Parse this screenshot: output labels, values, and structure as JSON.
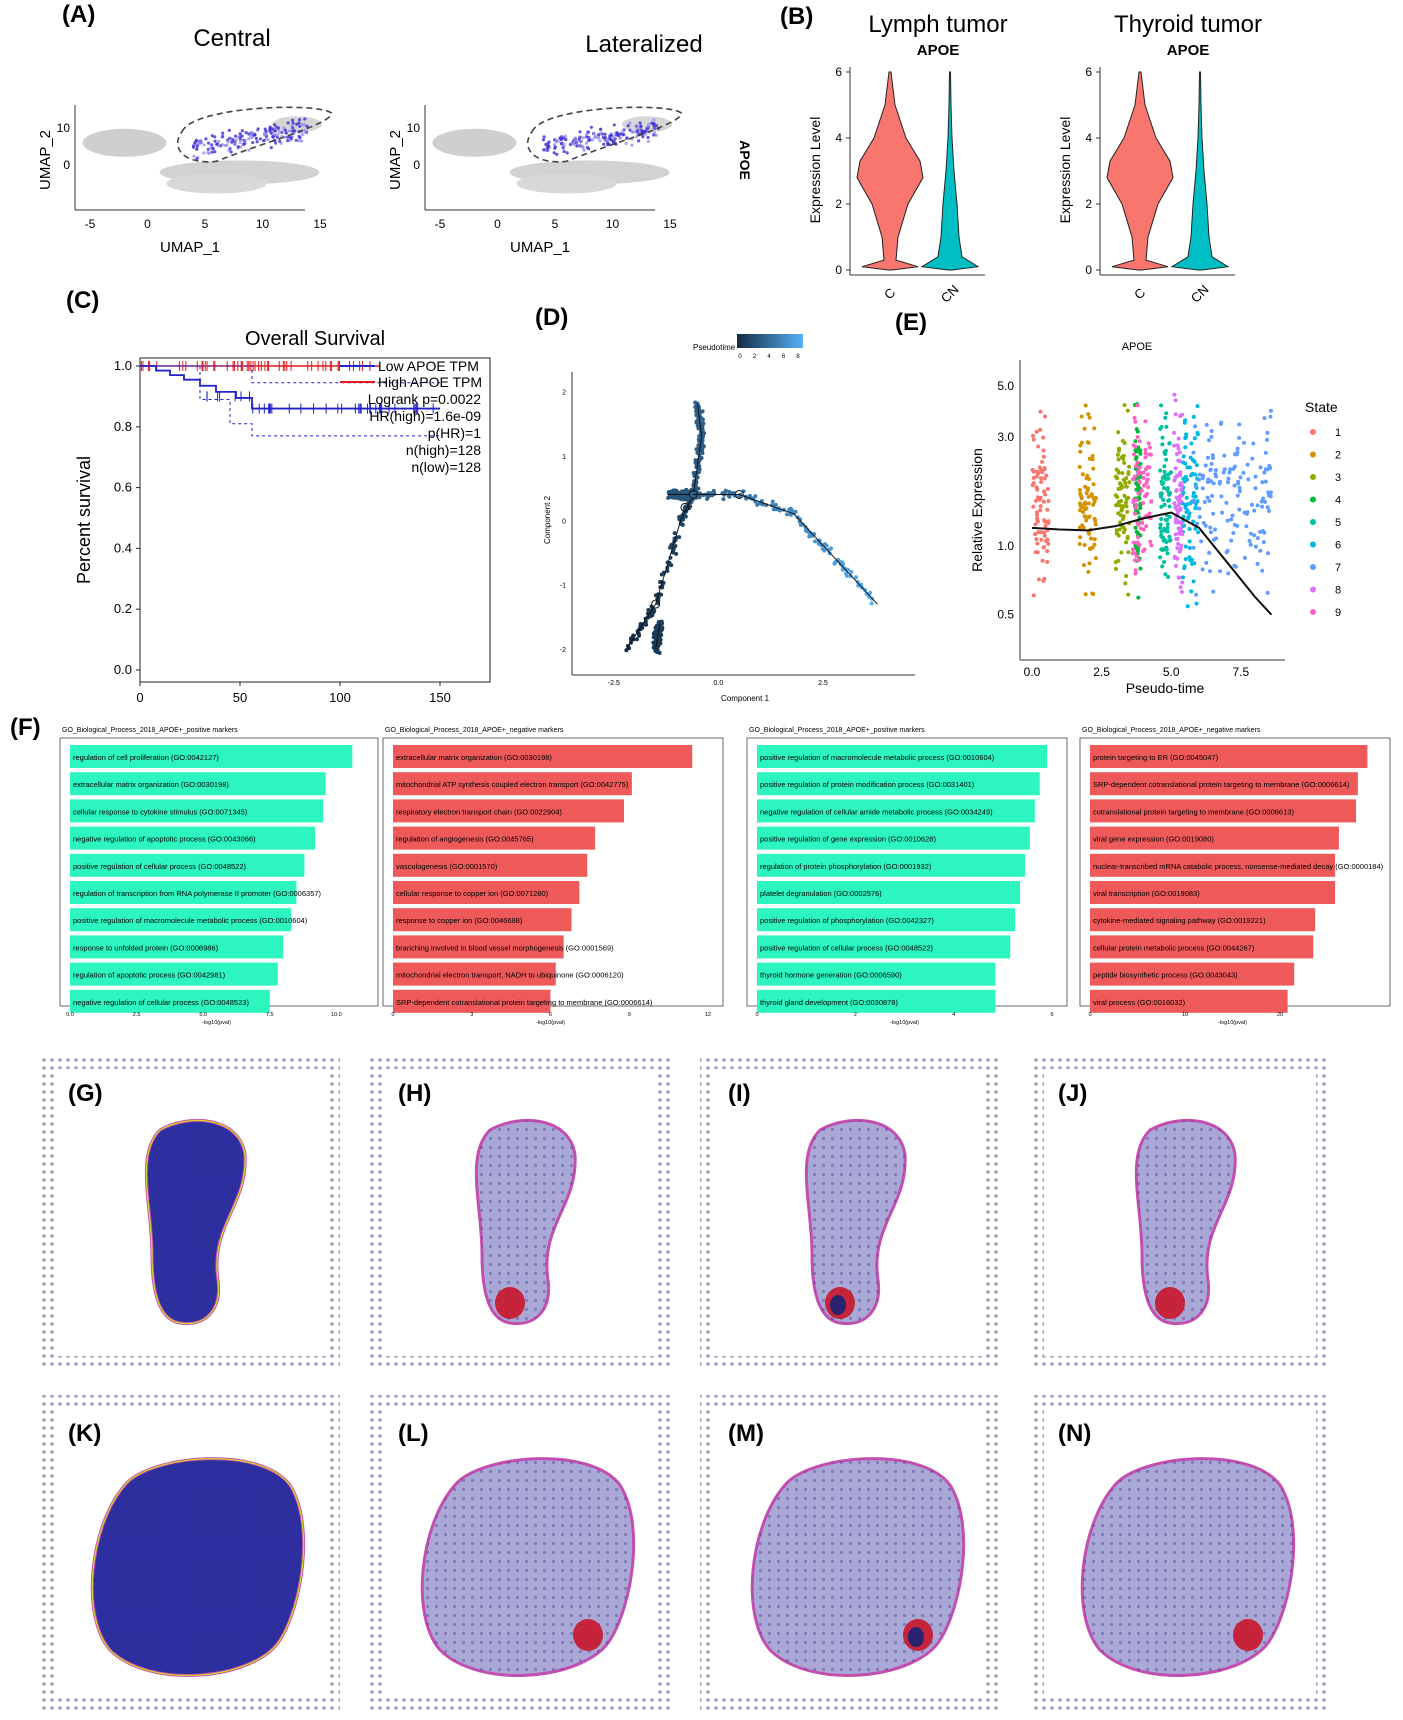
{
  "panels": {
    "A": {
      "label": "(A)",
      "plots": [
        {
          "title": "Central",
          "xlabel": "UMAP_1",
          "ylabel": "UMAP_2"
        },
        {
          "title": "Lateralized",
          "xlabel": "UMAP_1",
          "ylabel": "UMAP_2"
        }
      ],
      "side_label": "APOE",
      "xticks": [
        "-5",
        "0",
        "5",
        "10",
        "15"
      ],
      "yticks": [
        "10",
        "0"
      ]
    },
    "B": {
      "label": "(B)",
      "plots": [
        {
          "title": "Lymph tumor",
          "subtitle": "APOE"
        },
        {
          "title": "Thyroid tumor",
          "subtitle": "APOE"
        }
      ],
      "ylabel": "Expression Level",
      "yticks": [
        "6",
        "4",
        "2",
        "0"
      ],
      "groups": [
        "C",
        "CN"
      ]
    },
    "C": {
      "label": "(C)",
      "title": "Overall Survival",
      "ylabel": "Percent survival",
      "yticks": [
        "1.0",
        "0.8",
        "0.6",
        "0.4",
        "0.2",
        "0.0"
      ],
      "xticks": [
        "0",
        "50",
        "100",
        "150"
      ],
      "legend": [
        "Low APOE TPM",
        "High APOE TPM"
      ],
      "stats": [
        "Logrank p=0.0022",
        "HR(high)=1.6e-09",
        "p(HR)=1",
        "n(high)=128",
        "n(low)=128"
      ]
    },
    "D": {
      "label": "(D)",
      "legend_title": "Pseudotime",
      "legend_ticks": [
        "0",
        "2",
        "4",
        "6",
        "8"
      ],
      "xlabel": "Component 1",
      "ylabel": "Component 2",
      "xticks": [
        "-2.5",
        "0.0",
        "2.5"
      ],
      "yticks": [
        "2",
        "1",
        "0",
        "-1",
        "-2"
      ]
    },
    "E": {
      "label": "(E)",
      "title": "APOE",
      "ylabel": "Relative Expression",
      "xlabel": "Pseudo-time",
      "yticks": [
        "5.0",
        "3.0",
        "1.0",
        "0.5"
      ],
      "xticks": [
        "0.0",
        "2.5",
        "5.0",
        "7.5"
      ],
      "legend_title": "State",
      "states": [
        "1",
        "2",
        "3",
        "4",
        "5",
        "6",
        "7",
        "8",
        "9"
      ],
      "state_colors": [
        "#f8766d",
        "#d39200",
        "#93aa00",
        "#00ba38",
        "#00c19f",
        "#00b9e3",
        "#619cff",
        "#db72fb",
        "#ff61c3"
      ]
    },
    "F": {
      "label": "(F)",
      "charts": [
        {
          "title": "GO_Biological_Process_2018_APOE+_positive markers",
          "color": "#2cf5c0",
          "terms": [
            "regulation of cell proliferation (GO:0042127)",
            "extracellular matrix organization (GO:0030198)",
            "cellular response to cytokine stimulus (GO:0071345)",
            "negative regulation of apoptotic process (GO:0043066)",
            "positive regulation of cellular process (GO:0048522)",
            "regulation of transcription from RNA polymerase II promoter (GO:0006357)",
            "positive regulation of macromolecule metabolic process (GO:0010604)",
            "response to unfolded protein (GO:0006986)",
            "regulation of apoptotic process (GO:0042981)",
            "negative regulation of cellular process (GO:0048523)"
          ],
          "values": [
            10.6,
            9.6,
            9.5,
            9.2,
            8.8,
            8.5,
            8.3,
            8.0,
            7.8,
            7.5
          ],
          "xticks": [
            "0.0",
            "2.5",
            "5.0",
            "7.5",
            "10.0"
          ],
          "xmax": 11,
          "xlabel": "-log10(pval)"
        },
        {
          "title": "GO_Biological_Process_2018_APOE+_negative markers",
          "color": "#ee5a5a",
          "terms": [
            "extracellular matrix organization (GO:0030198)",
            "mitochondrial ATP synthesis coupled electron transport (GO:0042775)",
            "respiratory electron transport chain (GO:0022904)",
            "regulation of angiogenesis (GO:0045765)",
            "vasculogenesis (GO:0001570)",
            "cellular response to copper ion (GO:0071280)",
            "response to copper ion (GO:0046688)",
            "branching involved in blood vessel morphogenesis (GO:0001569)",
            "mitochondrial electron transport, NADH to ubiquinone (GO:0006120)",
            "SRP-dependent cotranslational protein targeting to membrane (GO:0006614)"
          ],
          "values": [
            11.4,
            9.1,
            8.8,
            7.7,
            7.4,
            7.1,
            6.8,
            6.5,
            6.2,
            6.0
          ],
          "xticks": [
            "0",
            "3",
            "6",
            "9",
            "12"
          ],
          "xmax": 12,
          "xlabel": "-log10(pval)"
        },
        {
          "title": "GO_Biological_Process_2018_APOE+_positive markers",
          "color": "#2cf5c0",
          "terms": [
            "positive regulation of macromolecule metabolic process (GO:0010604)",
            "positive regulation of protein modification process (GO:0031401)",
            "negative regulation of cellular amide metabolic process (GO:0034249)",
            "positive regulation of gene expression (GO:0010628)",
            "regulation of protein phosphorylation (GO:0001932)",
            "platelet degranulation (GO:0002576)",
            "positive regulation of phosphorylation (GO:0042327)",
            "positive regulation of cellular process (GO:0048522)",
            "thyroid hormone generation (GO:0006590)",
            "thyroid gland development (GO:0030878)"
          ],
          "values": [
            5.9,
            5.75,
            5.65,
            5.55,
            5.45,
            5.35,
            5.25,
            5.15,
            4.85,
            4.85
          ],
          "xticks": [
            "0",
            "2",
            "4",
            "6"
          ],
          "xmax": 6,
          "xlabel": "-log10(pval)"
        },
        {
          "title": "GO_Biological_Process_2018_APOE+_negative markers",
          "color": "#ee5a5a",
          "terms": [
            "protein targeting to ER (GO:0045047)",
            "SRP-dependent cotranslational protein targeting to membrane (GO:0006614)",
            "cotranslational protein targeting to membrane (GO:0006613)",
            "viral gene expression (GO:0019080)",
            "nuclear-transcribed mRNA catabolic process, nonsense-mediated decay (GO:0000184)",
            "viral transcription (GO:0019083)",
            "cytokine-mediated signaling pathway (GO:0019221)",
            "cellular protein metabolic process (GO:0044267)",
            "peptide biosynthetic process (GO:0043043)",
            "viral process (GO:0016032)"
          ],
          "values": [
            29.2,
            28.2,
            28.0,
            26.2,
            25.8,
            25.8,
            23.7,
            23.5,
            21.5,
            20.8
          ],
          "xticks": [
            "0",
            "10",
            "20"
          ],
          "xmax": 30,
          "xlabel": "-log10(pval)"
        }
      ]
    },
    "tissue": {
      "row1_labels": [
        "(G)",
        "(H)",
        "(I)",
        "(J)"
      ],
      "row2_labels": [
        "(K)",
        "(L)",
        "(M)",
        "(N)"
      ]
    }
  }
}
